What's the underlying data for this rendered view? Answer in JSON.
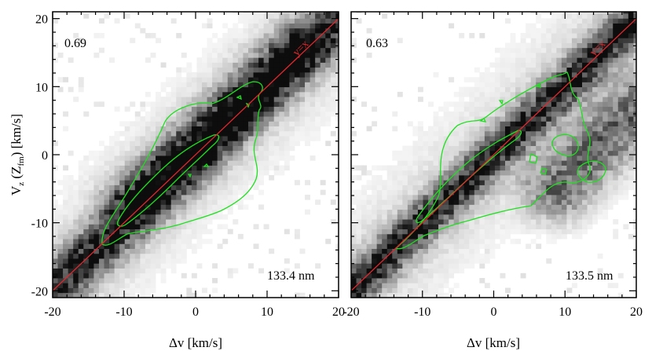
{
  "chart_data": [
    {
      "type": "heatmap",
      "panel": "left",
      "title": "",
      "xlabel": "Δv [km/s]",
      "ylabel": "V_z (Z_fm) [km/s]",
      "ylabel_main": "V",
      "ylabel_sub1": "z",
      "ylabel_mid": " (Z",
      "ylabel_sub2": "fm",
      "ylabel_end": ") [km/s]",
      "xlim": [
        -20,
        20
      ],
      "ylim": [
        -21,
        21
      ],
      "xticks": [
        -20,
        -10,
        0,
        10,
        20
      ],
      "yticks": [
        -20,
        -10,
        0,
        10,
        20
      ],
      "correlation": "0.69",
      "wavelength_label": "133.4 nm",
      "reference_line": {
        "label": "y=x",
        "slope": 1,
        "intercept": 0,
        "color": "#e0282d"
      },
      "contour_color": "#1ee01e",
      "density_color": "#000000",
      "ridges": [
        {
          "x": [
            -20,
            20
          ],
          "y": [
            -20,
            20
          ],
          "width": 2.2,
          "strength": 1.0
        },
        {
          "x": [
            -9,
            14
          ],
          "y": [
            -6.5,
            15.5
          ],
          "width": 2.6,
          "strength": 0.55
        }
      ]
    },
    {
      "type": "heatmap",
      "panel": "right",
      "title": "",
      "xlabel": "Δv [km/s]",
      "ylabel": "",
      "xlim": [
        -20,
        20
      ],
      "ylim": [
        -21,
        21
      ],
      "xticks": [
        -20,
        -10,
        0,
        10,
        20
      ],
      "yticks": [
        -20,
        -10,
        0,
        10,
        20
      ],
      "correlation": "0.63",
      "wavelength_label": "133.5 nm",
      "reference_line": {
        "label": "y=x",
        "slope": 1,
        "intercept": 0,
        "color": "#e0282d"
      },
      "contour_color": "#1ee01e",
      "density_color": "#000000",
      "ridges": [
        {
          "x": [
            -20,
            20
          ],
          "y": [
            -20,
            20
          ],
          "width": 1.8,
          "strength": 1.0
        },
        {
          "x": [
            9,
            20
          ],
          "y": [
            -5,
            6.5
          ],
          "width": 3.2,
          "strength": 0.7
        }
      ]
    }
  ]
}
